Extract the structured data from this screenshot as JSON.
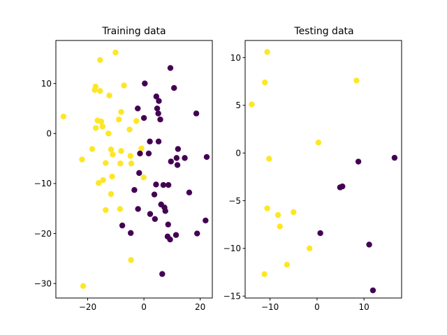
{
  "chart_data": [
    {
      "type": "scatter",
      "title": "Training data",
      "xlim": [
        -31.3,
        24.3
      ],
      "ylim": [
        -32.9,
        18.6
      ],
      "xticks": [
        -20,
        0,
        20
      ],
      "yticks": [
        10,
        0,
        -10,
        -20,
        -30
      ],
      "class_colors": {
        "0": "#440154",
        "1": "#fde725"
      },
      "points": [
        {
          "x": -28.6,
          "y": 3.4,
          "c": 1
        },
        {
          "x": -10.1,
          "y": 16.2,
          "c": 1
        },
        {
          "x": -15.6,
          "y": 14.7,
          "c": 1
        },
        {
          "x": -17.2,
          "y": 9.4,
          "c": 1
        },
        {
          "x": -17.5,
          "y": 8.7,
          "c": 1
        },
        {
          "x": -15.6,
          "y": 8.5,
          "c": 1
        },
        {
          "x": -7.1,
          "y": 9.6,
          "c": 1
        },
        {
          "x": -12.3,
          "y": 7.6,
          "c": 1
        },
        {
          "x": -8.1,
          "y": 4.3,
          "c": 1
        },
        {
          "x": -16.5,
          "y": 2.6,
          "c": 1
        },
        {
          "x": -15.2,
          "y": 2.4,
          "c": 1
        },
        {
          "x": -8.9,
          "y": 2.8,
          "c": 1
        },
        {
          "x": -2.7,
          "y": 2.5,
          "c": 1
        },
        {
          "x": -14.7,
          "y": 1.4,
          "c": 1
        },
        {
          "x": -17.1,
          "y": 1.1,
          "c": 1
        },
        {
          "x": -5.1,
          "y": 0.8,
          "c": 1
        },
        {
          "x": -12.6,
          "y": 0.0,
          "c": 1
        },
        {
          "x": -18.4,
          "y": -3.1,
          "c": 1
        },
        {
          "x": -11.7,
          "y": -3.2,
          "c": 1
        },
        {
          "x": -8.1,
          "y": -3.5,
          "c": 1
        },
        {
          "x": -0.9,
          "y": -3.0,
          "c": 1
        },
        {
          "x": -11.1,
          "y": -4.2,
          "c": 1
        },
        {
          "x": -4.8,
          "y": -4.5,
          "c": 1
        },
        {
          "x": -22.0,
          "y": -5.2,
          "c": 1
        },
        {
          "x": -13.6,
          "y": -5.9,
          "c": 1
        },
        {
          "x": -8.4,
          "y": -6.0,
          "c": 1
        },
        {
          "x": -4.5,
          "y": -6.0,
          "c": 1
        },
        {
          "x": -0.1,
          "y": -8.8,
          "c": 1
        },
        {
          "x": -11.3,
          "y": -8.6,
          "c": 1
        },
        {
          "x": -14.5,
          "y": -9.3,
          "c": 1
        },
        {
          "x": -16.1,
          "y": -9.9,
          "c": 1
        },
        {
          "x": -11.7,
          "y": -12.1,
          "c": 1
        },
        {
          "x": -8.5,
          "y": -15.1,
          "c": 1
        },
        {
          "x": -13.6,
          "y": -15.3,
          "c": 1
        },
        {
          "x": -4.6,
          "y": -25.3,
          "c": 1
        },
        {
          "x": -21.6,
          "y": -30.5,
          "c": 1
        },
        {
          "x": 9.4,
          "y": 13.1,
          "c": 0
        },
        {
          "x": 0.3,
          "y": 10.0,
          "c": 0
        },
        {
          "x": 10.7,
          "y": 9.1,
          "c": 0
        },
        {
          "x": 4.4,
          "y": 7.4,
          "c": 0
        },
        {
          "x": 5.3,
          "y": 6.5,
          "c": 0
        },
        {
          "x": -2.2,
          "y": 5.0,
          "c": 0
        },
        {
          "x": 4.7,
          "y": 5.0,
          "c": 0
        },
        {
          "x": 5.1,
          "y": 4.0,
          "c": 0
        },
        {
          "x": 18.6,
          "y": 4.0,
          "c": 0
        },
        {
          "x": 0.0,
          "y": 3.1,
          "c": 0
        },
        {
          "x": 5.8,
          "y": 2.8,
          "c": 0
        },
        {
          "x": 2.1,
          "y": -1.6,
          "c": 0
        },
        {
          "x": 5.2,
          "y": -1.6,
          "c": 0
        },
        {
          "x": 12.1,
          "y": -3.1,
          "c": 0
        },
        {
          "x": -1.4,
          "y": -4.0,
          "c": 0
        },
        {
          "x": 1.7,
          "y": -4.0,
          "c": 0
        },
        {
          "x": 11.6,
          "y": -4.9,
          "c": 0
        },
        {
          "x": 14.5,
          "y": -4.9,
          "c": 0
        },
        {
          "x": 22.3,
          "y": -4.7,
          "c": 0
        },
        {
          "x": 9.6,
          "y": -5.6,
          "c": 0
        },
        {
          "x": 11.9,
          "y": -6.3,
          "c": 0
        },
        {
          "x": -1.7,
          "y": -7.9,
          "c": 0
        },
        {
          "x": 4.3,
          "y": -10.2,
          "c": 0
        },
        {
          "x": 6.9,
          "y": -10.3,
          "c": 0
        },
        {
          "x": 8.7,
          "y": -10.3,
          "c": 0
        },
        {
          "x": -3.4,
          "y": -11.3,
          "c": 0
        },
        {
          "x": 16.1,
          "y": -11.8,
          "c": 0
        },
        {
          "x": 3.7,
          "y": -12.2,
          "c": 0
        },
        {
          "x": 6.1,
          "y": -14.2,
          "c": 0
        },
        {
          "x": 7.3,
          "y": -14.8,
          "c": 0
        },
        {
          "x": 7.6,
          "y": -15.5,
          "c": 0
        },
        {
          "x": -2.1,
          "y": -15.1,
          "c": 0
        },
        {
          "x": 2.2,
          "y": -16.1,
          "c": 0
        },
        {
          "x": 3.9,
          "y": -17.1,
          "c": 0
        },
        {
          "x": 21.9,
          "y": -17.4,
          "c": 0
        },
        {
          "x": -7.7,
          "y": -18.4,
          "c": 0
        },
        {
          "x": 8.6,
          "y": -18.2,
          "c": 0
        },
        {
          "x": -4.7,
          "y": -19.9,
          "c": 0
        },
        {
          "x": 11.4,
          "y": -20.3,
          "c": 0
        },
        {
          "x": 18.9,
          "y": -20.0,
          "c": 0
        },
        {
          "x": 8.4,
          "y": -20.6,
          "c": 0
        },
        {
          "x": 9.3,
          "y": -21.2,
          "c": 0
        },
        {
          "x": 6.5,
          "y": -28.1,
          "c": 0
        }
      ]
    },
    {
      "type": "scatter",
      "title": "Testing data",
      "xlim": [
        -15.3,
        18.0
      ],
      "ylim": [
        -15.2,
        11.8
      ],
      "xticks": [
        -10,
        0,
        10
      ],
      "yticks": [
        10,
        5,
        0,
        -5,
        -10,
        -15
      ],
      "class_colors": {
        "0": "#440154",
        "1": "#fde725"
      },
      "points": [
        {
          "x": -10.6,
          "y": 10.6,
          "c": 1
        },
        {
          "x": -11.1,
          "y": 7.4,
          "c": 1
        },
        {
          "x": 8.4,
          "y": 7.6,
          "c": 1
        },
        {
          "x": -13.9,
          "y": 5.1,
          "c": 1
        },
        {
          "x": 0.3,
          "y": 1.1,
          "c": 1
        },
        {
          "x": -10.2,
          "y": -0.6,
          "c": 1
        },
        {
          "x": -10.6,
          "y": -5.8,
          "c": 1
        },
        {
          "x": -8.3,
          "y": -6.5,
          "c": 1
        },
        {
          "x": -5.0,
          "y": -6.2,
          "c": 1
        },
        {
          "x": -7.9,
          "y": -7.7,
          "c": 1
        },
        {
          "x": -1.6,
          "y": -10.0,
          "c": 1
        },
        {
          "x": -6.4,
          "y": -11.7,
          "c": 1
        },
        {
          "x": -11.2,
          "y": -12.7,
          "c": 1
        },
        {
          "x": 16.5,
          "y": -0.5,
          "c": 0
        },
        {
          "x": 8.8,
          "y": -0.9,
          "c": 0
        },
        {
          "x": 4.9,
          "y": -3.6,
          "c": 0
        },
        {
          "x": 5.4,
          "y": -3.5,
          "c": 0
        },
        {
          "x": 0.7,
          "y": -8.4,
          "c": 0
        },
        {
          "x": 11.1,
          "y": -9.6,
          "c": 0
        },
        {
          "x": 11.9,
          "y": -14.4,
          "c": 0
        }
      ]
    }
  ]
}
